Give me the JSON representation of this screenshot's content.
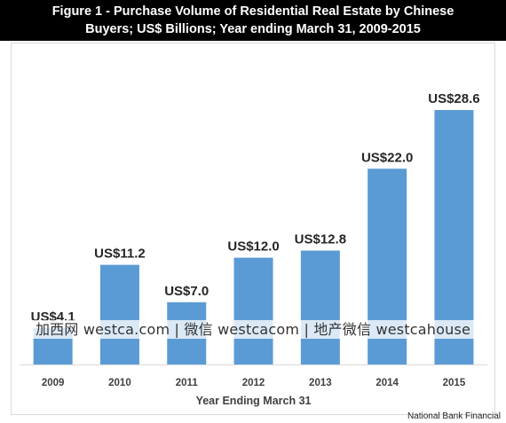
{
  "chart_data": {
    "type": "bar",
    "title_line1": "Figure 1 - Purchase Volume of Residential Real Estate by Chinese",
    "title_line2": "Buyers; US$ Billions; Year ending March 31, 2009-2015",
    "xlabel": "Year Ending  March 31",
    "ylabel": "",
    "categories": [
      "2009",
      "2010",
      "2011",
      "2012",
      "2013",
      "2014",
      "2015"
    ],
    "values": [
      4.1,
      11.2,
      7.0,
      12.0,
      12.8,
      22.0,
      28.6
    ],
    "data_labels": [
      "US$4.1",
      "US$11.2",
      "US$7.0",
      "US$12.0",
      "US$12.8",
      "US$22.0",
      "US$28.6"
    ],
    "ylim": [
      0,
      30
    ],
    "grid": false,
    "colors": {
      "bar": "#5b9bd5",
      "title_bg": "#000000",
      "title_text": "#ffffff"
    }
  },
  "watermark": "加西网 westca.com | 微信 westcacom | 地产微信 westcahouse",
  "source": "National Bank Financial"
}
